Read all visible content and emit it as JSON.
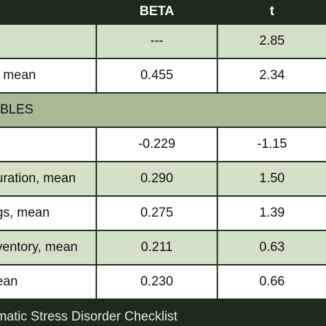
{
  "header": {
    "col1": "",
    "col2": "BETA",
    "col3": "t"
  },
  "rows": [
    {
      "label": "",
      "beta": "---",
      "t": "2.85"
    },
    {
      "label": ", mean",
      "beta": "0.455",
      "t": "2.34"
    },
    {
      "section": "BLES"
    },
    {
      "label": "",
      "beta": "-0.229",
      "t": "-1.15"
    },
    {
      "label": "uration, mean",
      "beta": "0.290",
      "t": "1.50"
    },
    {
      "label": "gs, mean",
      "beta": "0.275",
      "t": "1.39"
    },
    {
      "label": "ventory, mean",
      "beta": "0.211",
      "t": "0.63"
    },
    {
      "label": "ean",
      "beta": "0.230",
      "t": "0.66"
    }
  ],
  "footer": "matic Stress Disorder Checklist"
}
